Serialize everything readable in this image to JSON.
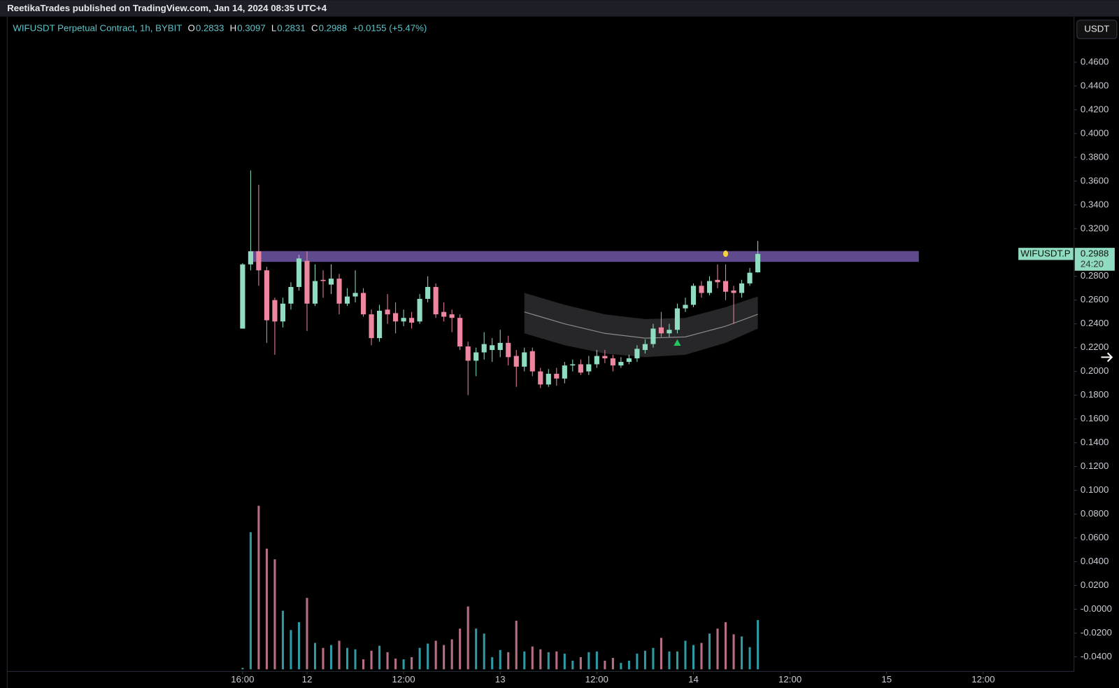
{
  "header": "ReetikaTrades published on TradingView.com, Jan 14, 2024 08:35 UTC+4",
  "chart_data": {
    "type": "candlestick",
    "symbol": "WIFUSDT Perpetual Contract, 1h, BYBIT",
    "legend": [
      {
        "key": "O",
        "value": "0.2833"
      },
      {
        "key": "H",
        "value": "0.3097"
      },
      {
        "key": "L",
        "value": "0.2831"
      },
      {
        "key": "C",
        "value": "0.2988"
      }
    ],
    "change": "+0.0155 (+5.47%)",
    "currency": "USDT",
    "price_tag": {
      "name": "WIFUSDT.P",
      "price": "0.2988",
      "countdown": "24:20"
    },
    "up_color": "#8fdcc0",
    "down_color": "#ee86a0",
    "grid": false,
    "xlim": [
      -29.25,
      103.28
    ],
    "xticks": [
      {
        "value": 0,
        "label": "16:00"
      },
      {
        "value": 8,
        "label": "12"
      },
      {
        "value": 20,
        "label": "12:00"
      },
      {
        "value": 32,
        "label": "13"
      },
      {
        "value": 44,
        "label": "12:00"
      },
      {
        "value": 56,
        "label": "14"
      },
      {
        "value": 68,
        "label": "12:00"
      },
      {
        "value": 80,
        "label": "15"
      },
      {
        "value": 92,
        "label": "12:00"
      }
    ],
    "ylim": [
      -0.0505,
      0.4978
    ],
    "yticks": [
      {
        "value": 0.46,
        "label": "0.4600"
      },
      {
        "value": 0.44,
        "label": "0.4400"
      },
      {
        "value": 0.42,
        "label": "0.4200"
      },
      {
        "value": 0.4,
        "label": "0.4000"
      },
      {
        "value": 0.38,
        "label": "0.3800"
      },
      {
        "value": 0.36,
        "label": "0.3600"
      },
      {
        "value": 0.34,
        "label": "0.3400"
      },
      {
        "value": 0.32,
        "label": "0.3200"
      },
      {
        "value": 0.28,
        "label": "0.2800"
      },
      {
        "value": 0.26,
        "label": "0.2600"
      },
      {
        "value": 0.24,
        "label": "0.2400"
      },
      {
        "value": 0.22,
        "label": "0.2200"
      },
      {
        "value": 0.2,
        "label": "0.2000"
      },
      {
        "value": 0.18,
        "label": "0.1800"
      },
      {
        "value": 0.16,
        "label": "0.1600"
      },
      {
        "value": 0.14,
        "label": "0.1400"
      },
      {
        "value": 0.12,
        "label": "0.1200"
      },
      {
        "value": 0.1,
        "label": "0.1000"
      },
      {
        "value": 0.08,
        "label": "0.0800"
      },
      {
        "value": 0.06,
        "label": "0.0600"
      },
      {
        "value": 0.04,
        "label": "0.0400"
      },
      {
        "value": 0.02,
        "label": "0.0200"
      },
      {
        "value": 0,
        "label": "-0.0000"
      },
      {
        "value": -0.02,
        "label": "-0.0200"
      },
      {
        "value": -0.04,
        "label": "-0.0400"
      }
    ],
    "x": [
      0,
      1,
      2,
      3,
      4,
      5,
      6,
      7,
      8,
      9,
      10,
      11,
      12,
      13,
      14,
      15,
      16,
      17,
      18,
      19,
      20,
      21,
      22,
      23,
      24,
      25,
      26,
      27,
      28,
      29,
      30,
      31,
      32,
      33,
      34,
      35,
      36,
      37,
      38,
      39,
      40,
      41,
      42,
      43,
      44,
      45,
      46,
      47,
      48,
      49,
      50,
      51,
      52,
      53,
      54,
      55,
      56,
      57,
      58,
      59,
      60,
      61,
      62,
      63,
      64
    ],
    "open": [
      0.236,
      0.29,
      0.301,
      0.285,
      0.26,
      0.242,
      0.257,
      0.271,
      0.293,
      0.257,
      0.277,
      0.273,
      0.278,
      0.257,
      0.263,
      0.266,
      0.248,
      0.228,
      0.252,
      0.249,
      0.242,
      0.245,
      0.242,
      0.261,
      0.271,
      0.25,
      0.248,
      0.245,
      0.221,
      0.209,
      0.216,
      0.218,
      0.218,
      0.224,
      0.213,
      0.204,
      0.217,
      0.2,
      0.189,
      0.198,
      0.194,
      0.205,
      0.206,
      0.2,
      0.206,
      0.213,
      0.211,
      0.205,
      0.208,
      0.211,
      0.218,
      0.223,
      0.237,
      0.232,
      0.235,
      0.253,
      0.256,
      0.272,
      0.266,
      0.277,
      0.276,
      0.268,
      0.266,
      0.274,
      0.2833
    ],
    "high": [
      0.291,
      0.369,
      0.357,
      0.288,
      0.262,
      0.262,
      0.275,
      0.298,
      0.301,
      0.29,
      0.285,
      0.29,
      0.282,
      0.27,
      0.285,
      0.27,
      0.252,
      0.256,
      0.265,
      0.258,
      0.252,
      0.25,
      0.265,
      0.28,
      0.274,
      0.258,
      0.252,
      0.248,
      0.225,
      0.22,
      0.233,
      0.228,
      0.235,
      0.23,
      0.218,
      0.22,
      0.22,
      0.203,
      0.202,
      0.203,
      0.208,
      0.21,
      0.21,
      0.213,
      0.218,
      0.218,
      0.214,
      0.212,
      0.214,
      0.222,
      0.227,
      0.24,
      0.25,
      0.24,
      0.257,
      0.262,
      0.274,
      0.276,
      0.28,
      0.29,
      0.29,
      0.272,
      0.277,
      0.287,
      0.3097
    ],
    "low": [
      0.236,
      0.285,
      0.272,
      0.224,
      0.214,
      0.237,
      0.252,
      0.268,
      0.234,
      0.255,
      0.262,
      0.265,
      0.248,
      0.255,
      0.258,
      0.246,
      0.222,
      0.225,
      0.24,
      0.232,
      0.238,
      0.236,
      0.24,
      0.258,
      0.245,
      0.242,
      0.233,
      0.218,
      0.18,
      0.196,
      0.21,
      0.208,
      0.212,
      0.205,
      0.187,
      0.2,
      0.196,
      0.186,
      0.187,
      0.188,
      0.19,
      0.2,
      0.197,
      0.197,
      0.203,
      0.207,
      0.2,
      0.203,
      0.206,
      0.208,
      0.215,
      0.22,
      0.229,
      0.229,
      0.232,
      0.25,
      0.254,
      0.262,
      0.264,
      0.27,
      0.26,
      0.24,
      0.262,
      0.272,
      0.2831
    ],
    "close": [
      0.29,
      0.301,
      0.285,
      0.243,
      0.242,
      0.257,
      0.271,
      0.295,
      0.257,
      0.276,
      0.276,
      0.278,
      0.257,
      0.263,
      0.266,
      0.248,
      0.228,
      0.251,
      0.248,
      0.242,
      0.245,
      0.241,
      0.261,
      0.271,
      0.248,
      0.246,
      0.245,
      0.221,
      0.209,
      0.216,
      0.223,
      0.222,
      0.224,
      0.212,
      0.204,
      0.216,
      0.2,
      0.189,
      0.198,
      0.194,
      0.205,
      0.206,
      0.199,
      0.206,
      0.213,
      0.211,
      0.205,
      0.208,
      0.211,
      0.219,
      0.223,
      0.236,
      0.232,
      0.235,
      0.253,
      0.256,
      0.272,
      0.266,
      0.276,
      0.275,
      0.267,
      0.266,
      0.274,
      0.283,
      0.2988
    ],
    "volume": {
      "up_color": "#2f9aa3",
      "down_color": "#b86f84",
      "vlim": [
        0,
        240
      ],
      "values": [
        2,
        192,
        229,
        169,
        154,
        82,
        55,
        66,
        100,
        37,
        30,
        34,
        40,
        30,
        28,
        14,
        26,
        33,
        24,
        15,
        14,
        17,
        30,
        36,
        40,
        34,
        42,
        57,
        88,
        57,
        50,
        17,
        27,
        24,
        68,
        25,
        32,
        28,
        24,
        25,
        22,
        12,
        17,
        24,
        25,
        12,
        16,
        9,
        12,
        22,
        26,
        30,
        44,
        25,
        25,
        40,
        34,
        37,
        50,
        57,
        66,
        49,
        46,
        31,
        69
      ]
    },
    "zone": {
      "color": "#5e4a8c",
      "x": [
        1,
        84
      ],
      "y": [
        0.2921,
        0.3012
      ]
    },
    "band": {
      "color": "#8a8a8a",
      "x": [
        35,
        40,
        45,
        50,
        55,
        60,
        64
      ],
      "center": [
        0.25,
        0.24,
        0.232,
        0.228,
        0.229,
        0.238,
        0.248
      ],
      "upper": [
        0.266,
        0.256,
        0.248,
        0.244,
        0.245,
        0.254,
        0.263
      ],
      "lower": [
        0.232,
        0.222,
        0.215,
        0.212,
        0.214,
        0.224,
        0.236
      ]
    },
    "signals": [
      {
        "x": 54,
        "y": 0.224,
        "color": "#22c55e"
      },
      {
        "x": 60,
        "y": 0.299,
        "color": "#f5d142"
      }
    ]
  }
}
